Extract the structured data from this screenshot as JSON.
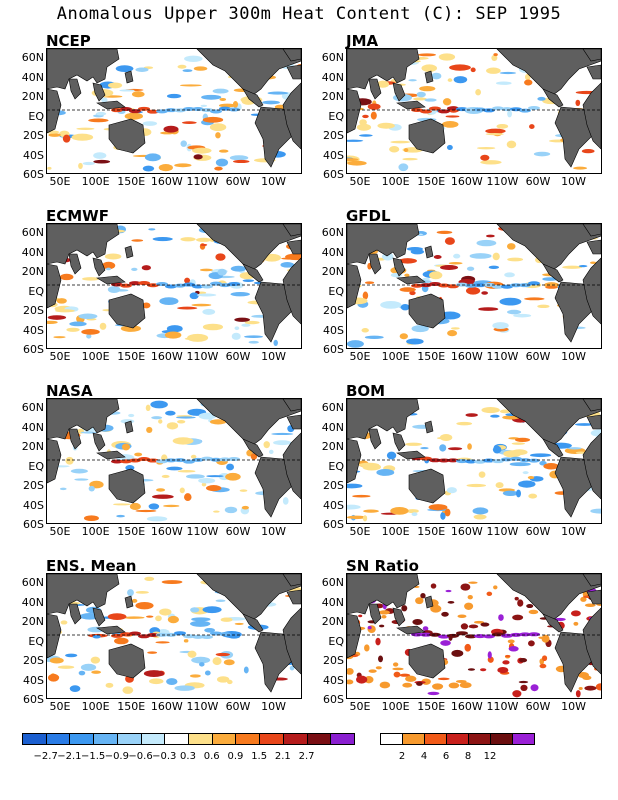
{
  "title": "Anomalous Upper 300m Heat Content (C): SEP 1995",
  "colors": {
    "land": "#5f5f5f",
    "neg": [
      "#1b5fd0",
      "#2a7ce6",
      "#3c98f0",
      "#66b4f4",
      "#99d2f8",
      "#c4eafc"
    ],
    "pos": [
      "#fde08a",
      "#fbac3c",
      "#f77a1e",
      "#e8461a",
      "#b51c1c",
      "#7a0f14",
      "#8a1fd0"
    ],
    "sn": [
      "#ffffff",
      "#f79a2e",
      "#f15a18",
      "#c8201c",
      "#8c1414",
      "#6b0f10",
      "#9a20d6"
    ]
  },
  "chart_data": {
    "type": "heatmap",
    "y_ticks": [
      "60N",
      "40N",
      "20N",
      "EQ",
      "20S",
      "40S",
      "60S"
    ],
    "x_ticks": [
      "50E",
      "100E",
      "150E",
      "160W",
      "110W",
      "60W",
      "10W"
    ],
    "panels": [
      {
        "name": "NCEP",
        "seed": 11
      },
      {
        "name": "JMA",
        "seed": 23
      },
      {
        "name": "ECMWF",
        "seed": 37
      },
      {
        "name": "GFDL",
        "seed": 41
      },
      {
        "name": "NASA",
        "seed": 53
      },
      {
        "name": "BOM",
        "seed": 67
      },
      {
        "name": "ENS. Mean",
        "seed": 79
      },
      {
        "name": "SN Ratio",
        "seed": 97
      }
    ],
    "anomaly_colorbar": {
      "labels": [
        "-2.7",
        "-2.1",
        "-1.5",
        "-0.9",
        "-0.6",
        "-0.3",
        "0.3",
        "0.6",
        "0.9",
        "1.5",
        "2.1",
        "2.7"
      ]
    },
    "sn_colorbar": {
      "labels": [
        "2",
        "4",
        "6",
        "8",
        "12"
      ]
    }
  }
}
